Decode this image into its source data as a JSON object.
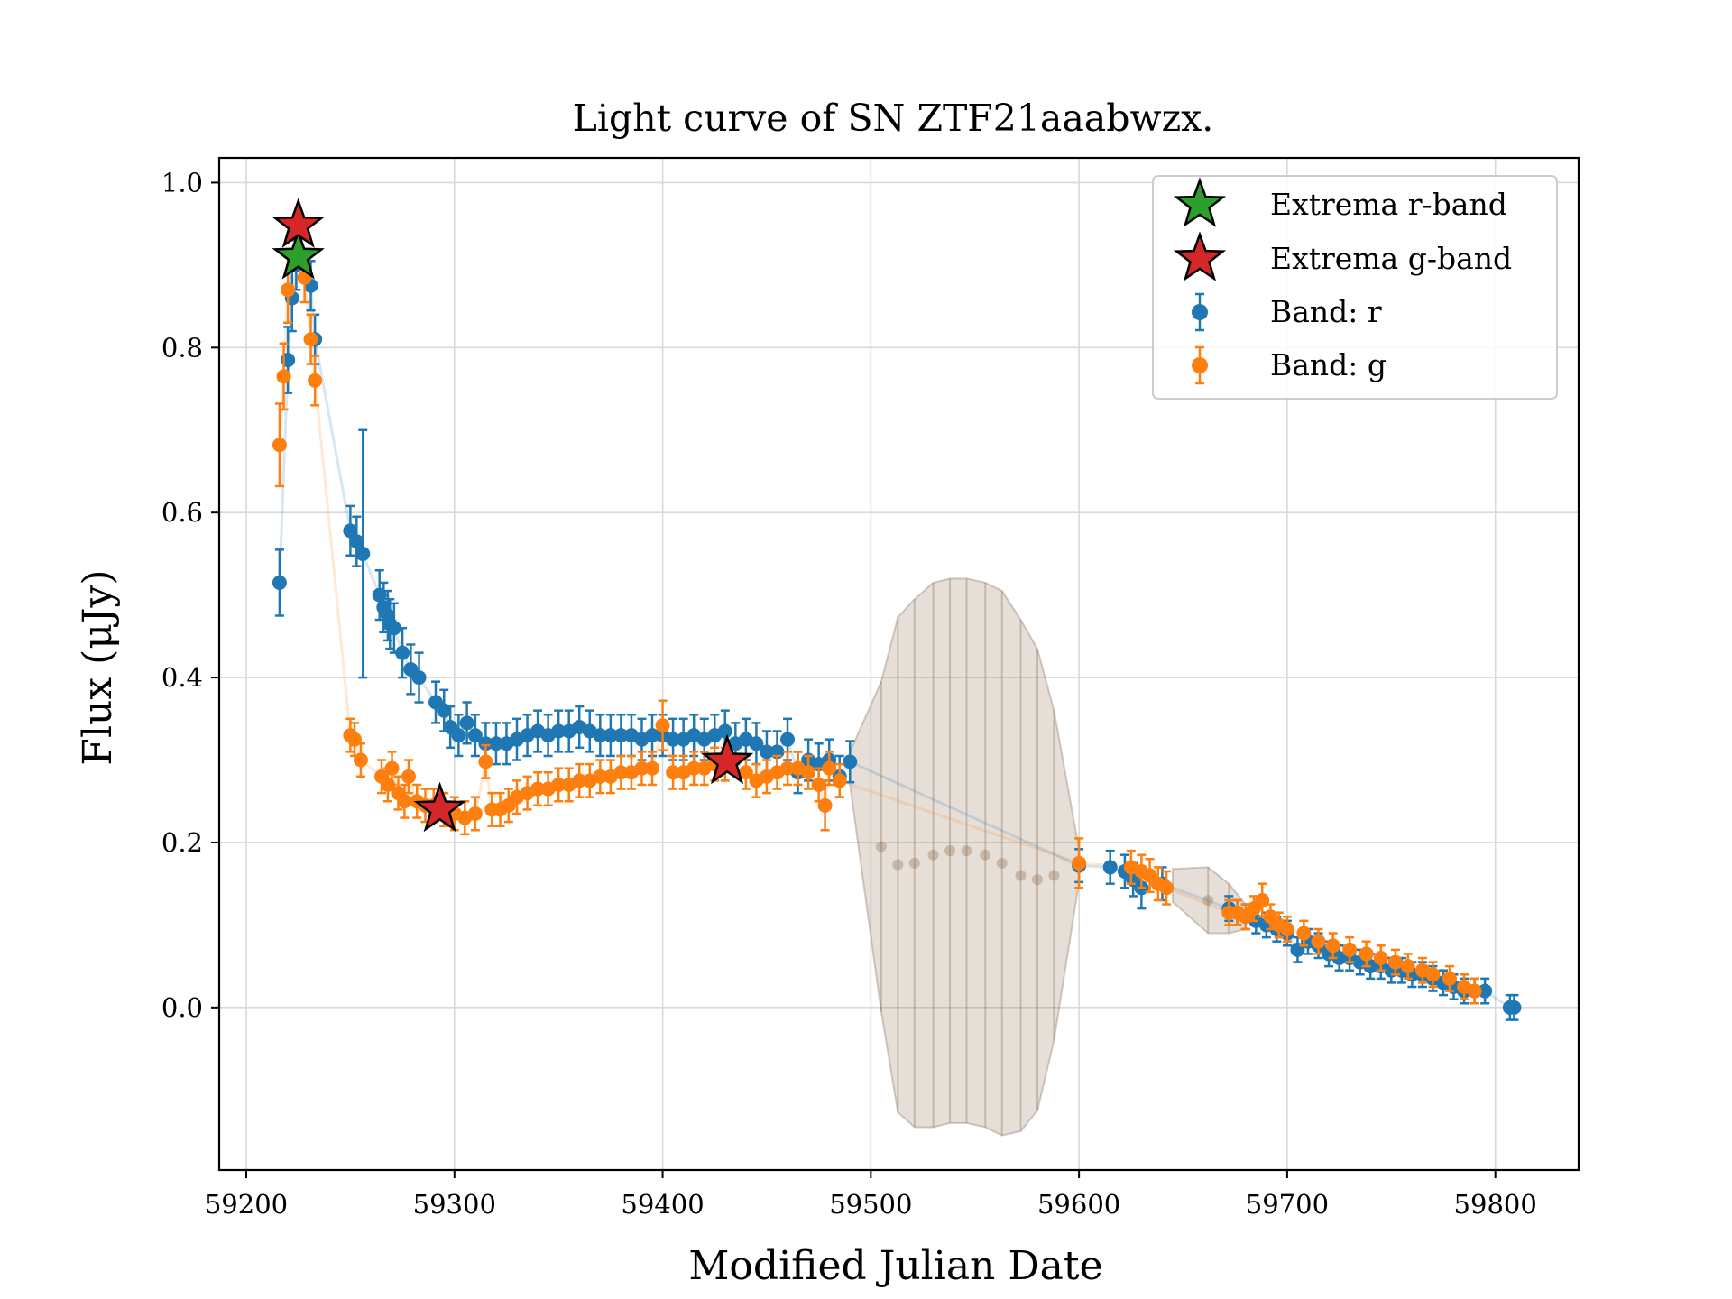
{
  "chart_data": {
    "type": "scatter",
    "title": "Light curve of SN ZTF21aaabwzx.",
    "xlabel": "Modified Julian Date",
    "ylabel": "Flux (μJy)",
    "xlim": [
      59187,
      59840
    ],
    "ylim": [
      -0.197,
      1.03
    ],
    "xticks": [
      59200,
      59300,
      59400,
      59500,
      59600,
      59700,
      59800
    ],
    "xtick_labels": [
      "59200",
      "59300",
      "59400",
      "59500",
      "59600",
      "59700",
      "59800"
    ],
    "yticks": [
      0.0,
      0.2,
      0.4,
      0.6,
      0.8,
      1.0
    ],
    "ytick_labels": [
      "0.0",
      "0.2",
      "0.4",
      "0.6",
      "0.8",
      "1.0"
    ],
    "grid": true,
    "legend_position": "top-right",
    "legend": [
      {
        "label": "Extrema r-band",
        "marker": "star",
        "color": "#2ca02c"
      },
      {
        "label": "Extrema g-band",
        "marker": "star",
        "color": "#d62728"
      },
      {
        "label": "Band: r",
        "marker": "errorbar",
        "color": "#1f77b4"
      },
      {
        "label": "Band: g",
        "marker": "errorbar",
        "color": "#ff7f0e"
      }
    ],
    "series": [
      {
        "name": "Band: r",
        "color": "#1f77b4",
        "points": [
          [
            59216,
            0.515,
            0.04
          ],
          [
            59220,
            0.785,
            0.04
          ],
          [
            59222,
            0.86,
            0.04
          ],
          [
            59224,
            0.9,
            0.03
          ],
          [
            59231,
            0.875,
            0.03
          ],
          [
            59233,
            0.81,
            0.03
          ],
          [
            59250,
            0.578,
            0.03
          ],
          [
            59253,
            0.565,
            0.03
          ],
          [
            59256,
            0.55,
            0.15
          ],
          [
            59264,
            0.5,
            0.03
          ],
          [
            59266,
            0.485,
            0.03
          ],
          [
            59268,
            0.475,
            0.03
          ],
          [
            59269,
            0.465,
            0.03
          ],
          [
            59271,
            0.46,
            0.03
          ],
          [
            59275,
            0.43,
            0.03
          ],
          [
            59279,
            0.41,
            0.03
          ],
          [
            59283,
            0.4,
            0.03
          ],
          [
            59291,
            0.37,
            0.025
          ],
          [
            59295,
            0.36,
            0.025
          ],
          [
            59298,
            0.34,
            0.025
          ],
          [
            59302,
            0.33,
            0.025
          ],
          [
            59306,
            0.345,
            0.025
          ],
          [
            59310,
            0.33,
            0.025
          ],
          [
            59315,
            0.32,
            0.025
          ],
          [
            59320,
            0.32,
            0.025
          ],
          [
            59325,
            0.32,
            0.025
          ],
          [
            59330,
            0.325,
            0.025
          ],
          [
            59335,
            0.33,
            0.025
          ],
          [
            59340,
            0.335,
            0.025
          ],
          [
            59345,
            0.33,
            0.025
          ],
          [
            59350,
            0.335,
            0.025
          ],
          [
            59355,
            0.335,
            0.025
          ],
          [
            59360,
            0.34,
            0.025
          ],
          [
            59365,
            0.335,
            0.025
          ],
          [
            59370,
            0.33,
            0.025
          ],
          [
            59375,
            0.33,
            0.025
          ],
          [
            59380,
            0.33,
            0.025
          ],
          [
            59385,
            0.33,
            0.025
          ],
          [
            59390,
            0.325,
            0.025
          ],
          [
            59395,
            0.33,
            0.025
          ],
          [
            59400,
            0.33,
            0.025
          ],
          [
            59405,
            0.325,
            0.025
          ],
          [
            59410,
            0.325,
            0.025
          ],
          [
            59415,
            0.33,
            0.025
          ],
          [
            59420,
            0.325,
            0.025
          ],
          [
            59425,
            0.33,
            0.025
          ],
          [
            59430,
            0.335,
            0.025
          ],
          [
            59435,
            0.32,
            0.025
          ],
          [
            59440,
            0.325,
            0.025
          ],
          [
            59445,
            0.32,
            0.025
          ],
          [
            59450,
            0.31,
            0.025
          ],
          [
            59455,
            0.31,
            0.025
          ],
          [
            59460,
            0.325,
            0.025
          ],
          [
            59465,
            0.285,
            0.025
          ],
          [
            59470,
            0.3,
            0.025
          ],
          [
            59475,
            0.295,
            0.025
          ],
          [
            59480,
            0.3,
            0.025
          ],
          [
            59485,
            0.28,
            0.025
          ],
          [
            59490,
            0.298,
            0.025
          ],
          [
            59600,
            0.172,
            0.02
          ],
          [
            59615,
            0.17,
            0.02
          ],
          [
            59622,
            0.165,
            0.02
          ],
          [
            59626,
            0.155,
            0.02
          ],
          [
            59630,
            0.145,
            0.025
          ],
          [
            59640,
            0.15,
            0.02
          ],
          [
            59672,
            0.12,
            0.015
          ],
          [
            59676,
            0.115,
            0.015
          ],
          [
            59680,
            0.11,
            0.015
          ],
          [
            59685,
            0.105,
            0.015
          ],
          [
            59690,
            0.1,
            0.015
          ],
          [
            59695,
            0.095,
            0.015
          ],
          [
            59700,
            0.09,
            0.015
          ],
          [
            59705,
            0.07,
            0.015
          ],
          [
            59710,
            0.08,
            0.015
          ],
          [
            59715,
            0.075,
            0.015
          ],
          [
            59720,
            0.065,
            0.015
          ],
          [
            59725,
            0.06,
            0.015
          ],
          [
            59730,
            0.06,
            0.015
          ],
          [
            59735,
            0.055,
            0.015
          ],
          [
            59740,
            0.05,
            0.015
          ],
          [
            59745,
            0.05,
            0.015
          ],
          [
            59750,
            0.045,
            0.015
          ],
          [
            59755,
            0.045,
            0.015
          ],
          [
            59760,
            0.04,
            0.015
          ],
          [
            59765,
            0.04,
            0.015
          ],
          [
            59770,
            0.035,
            0.015
          ],
          [
            59775,
            0.03,
            0.015
          ],
          [
            59780,
            0.025,
            0.015
          ],
          [
            59785,
            0.02,
            0.015
          ],
          [
            59790,
            0.02,
            0.015
          ],
          [
            59795,
            0.02,
            0.015
          ],
          [
            59807,
            0.0,
            0.015
          ],
          [
            59809,
            0.0,
            0.015
          ]
        ]
      },
      {
        "name": "Band: g",
        "color": "#ff7f0e",
        "points": [
          [
            59216,
            0.682,
            0.05
          ],
          [
            59218,
            0.765,
            0.04
          ],
          [
            59220,
            0.87,
            0.04
          ],
          [
            59228,
            0.885,
            0.03
          ],
          [
            59231,
            0.81,
            0.03
          ],
          [
            59233,
            0.76,
            0.03
          ],
          [
            59250,
            0.33,
            0.02
          ],
          [
            59252,
            0.325,
            0.02
          ],
          [
            59255,
            0.3,
            0.02
          ],
          [
            59265,
            0.28,
            0.02
          ],
          [
            59268,
            0.27,
            0.02
          ],
          [
            59270,
            0.29,
            0.02
          ],
          [
            59273,
            0.26,
            0.02
          ],
          [
            59276,
            0.25,
            0.02
          ],
          [
            59278,
            0.28,
            0.02
          ],
          [
            59282,
            0.25,
            0.02
          ],
          [
            59286,
            0.245,
            0.02
          ],
          [
            59290,
            0.245,
            0.02
          ],
          [
            59295,
            0.24,
            0.02
          ],
          [
            59300,
            0.235,
            0.02
          ],
          [
            59305,
            0.23,
            0.02
          ],
          [
            59310,
            0.235,
            0.02
          ],
          [
            59315,
            0.298,
            0.02
          ],
          [
            59318,
            0.24,
            0.02
          ],
          [
            59322,
            0.24,
            0.02
          ],
          [
            59326,
            0.245,
            0.02
          ],
          [
            59330,
            0.255,
            0.02
          ],
          [
            59335,
            0.26,
            0.02
          ],
          [
            59340,
            0.265,
            0.02
          ],
          [
            59345,
            0.265,
            0.02
          ],
          [
            59350,
            0.27,
            0.02
          ],
          [
            59355,
            0.27,
            0.02
          ],
          [
            59360,
            0.275,
            0.02
          ],
          [
            59365,
            0.275,
            0.02
          ],
          [
            59370,
            0.28,
            0.02
          ],
          [
            59375,
            0.28,
            0.02
          ],
          [
            59380,
            0.285,
            0.02
          ],
          [
            59385,
            0.285,
            0.02
          ],
          [
            59390,
            0.29,
            0.02
          ],
          [
            59395,
            0.29,
            0.02
          ],
          [
            59400,
            0.342,
            0.03
          ],
          [
            59405,
            0.285,
            0.02
          ],
          [
            59410,
            0.285,
            0.02
          ],
          [
            59415,
            0.29,
            0.02
          ],
          [
            59420,
            0.29,
            0.02
          ],
          [
            59425,
            0.295,
            0.02
          ],
          [
            59430,
            0.295,
            0.02
          ],
          [
            59440,
            0.285,
            0.02
          ],
          [
            59445,
            0.275,
            0.02
          ],
          [
            59450,
            0.28,
            0.02
          ],
          [
            59455,
            0.285,
            0.02
          ],
          [
            59460,
            0.29,
            0.02
          ],
          [
            59465,
            0.29,
            0.02
          ],
          [
            59470,
            0.285,
            0.02
          ],
          [
            59475,
            0.27,
            0.02
          ],
          [
            59478,
            0.245,
            0.03
          ],
          [
            59480,
            0.29,
            0.02
          ],
          [
            59485,
            0.275,
            0.02
          ],
          [
            59600,
            0.175,
            0.03
          ],
          [
            59625,
            0.17,
            0.02
          ],
          [
            59630,
            0.165,
            0.02
          ],
          [
            59634,
            0.16,
            0.02
          ],
          [
            59638,
            0.15,
            0.02
          ],
          [
            59642,
            0.145,
            0.02
          ],
          [
            59672,
            0.115,
            0.015
          ],
          [
            59676,
            0.115,
            0.015
          ],
          [
            59680,
            0.11,
            0.015
          ],
          [
            59684,
            0.12,
            0.015
          ],
          [
            59688,
            0.13,
            0.02
          ],
          [
            59692,
            0.11,
            0.015
          ],
          [
            59696,
            0.1,
            0.015
          ],
          [
            59700,
            0.095,
            0.015
          ],
          [
            59708,
            0.09,
            0.015
          ],
          [
            59715,
            0.08,
            0.015
          ],
          [
            59722,
            0.075,
            0.015
          ],
          [
            59730,
            0.07,
            0.015
          ],
          [
            59738,
            0.065,
            0.015
          ],
          [
            59745,
            0.06,
            0.015
          ],
          [
            59752,
            0.055,
            0.015
          ],
          [
            59758,
            0.05,
            0.015
          ],
          [
            59765,
            0.045,
            0.015
          ],
          [
            59770,
            0.04,
            0.015
          ],
          [
            59778,
            0.035,
            0.015
          ],
          [
            59785,
            0.025,
            0.015
          ],
          [
            59790,
            0.02,
            0.015
          ]
        ]
      },
      {
        "color": "#8c6d4f",
        "points": [
          [
            59505,
            0.195,
            0.2
          ],
          [
            59513,
            0.173,
            0.3
          ],
          [
            59521,
            0.175,
            0.32
          ],
          [
            59530,
            0.185,
            0.33
          ],
          [
            59538,
            0.19,
            0.33
          ],
          [
            59546,
            0.19,
            0.33
          ],
          [
            59555,
            0.185,
            0.33
          ],
          [
            59563,
            0.175,
            0.33
          ],
          [
            59572,
            0.16,
            0.31
          ],
          [
            59580,
            0.155,
            0.28
          ],
          [
            59588,
            0.16,
            0.2
          ],
          [
            59662,
            0.13,
            0.04
          ],
          [
            59672,
            0.12,
            0.03
          ]
        ]
      }
    ],
    "extrema": [
      {
        "band": "r",
        "color": "#2ca02c",
        "x": 59225,
        "y": 0.91
      },
      {
        "band": "g",
        "color": "#d62728",
        "x": 59225,
        "y": 0.948
      },
      {
        "band": "g",
        "color": "#d62728",
        "x": 59293,
        "y": 0.24
      },
      {
        "band": "g",
        "color": "#d62728",
        "x": 59431,
        "y": 0.298
      }
    ]
  }
}
